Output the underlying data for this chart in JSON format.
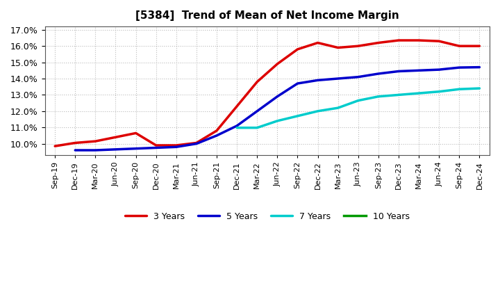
{
  "title": "[5384]  Trend of Mean of Net Income Margin",
  "ylim": [
    0.093,
    0.172
  ],
  "yticks": [
    0.1,
    0.11,
    0.12,
    0.13,
    0.14,
    0.15,
    0.16,
    0.17
  ],
  "background_color": "#ffffff",
  "grid_color": "#aaaaaa",
  "xtick_labels": [
    "Sep-19",
    "Dec-19",
    "Mar-20",
    "Jun-20",
    "Sep-20",
    "Dec-20",
    "Mar-21",
    "Jun-21",
    "Sep-21",
    "Dec-21",
    "Mar-22",
    "Jun-22",
    "Sep-22",
    "Dec-22",
    "Mar-23",
    "Jun-23",
    "Sep-23",
    "Dec-23",
    "Mar-24",
    "Jun-24",
    "Sep-24",
    "Dec-24"
  ],
  "series": [
    {
      "name": "3 Years",
      "color": "#dd0000",
      "x_idx": [
        0,
        1,
        2,
        3,
        4,
        5,
        6,
        7,
        8,
        9,
        10,
        11,
        12,
        13,
        14,
        15,
        16,
        17,
        18,
        19,
        20,
        21
      ],
      "y": [
        0.0985,
        0.1005,
        0.1015,
        0.104,
        0.1065,
        0.099,
        0.099,
        0.1005,
        0.108,
        0.123,
        0.138,
        0.149,
        0.158,
        0.162,
        0.159,
        0.16,
        0.162,
        0.1635,
        0.1635,
        0.163,
        0.16,
        0.16
      ]
    },
    {
      "name": "5 Years",
      "color": "#0000cc",
      "x_idx": [
        1,
        2,
        3,
        4,
        5,
        6,
        7,
        8,
        9,
        10,
        11,
        12,
        13,
        14,
        15,
        16,
        17,
        18,
        19,
        20,
        21
      ],
      "y": [
        0.096,
        0.096,
        0.0965,
        0.097,
        0.0975,
        0.098,
        0.1,
        0.105,
        0.111,
        0.12,
        0.129,
        0.137,
        0.139,
        0.14,
        0.141,
        0.143,
        0.1445,
        0.145,
        0.1455,
        0.1468,
        0.147
      ]
    },
    {
      "name": "7 Years",
      "color": "#00cccc",
      "x_idx": [
        9,
        10,
        11,
        12,
        13,
        14,
        15,
        16,
        17,
        18,
        19,
        20,
        21
      ],
      "y": [
        0.1098,
        0.1098,
        0.114,
        0.117,
        0.12,
        0.122,
        0.1265,
        0.129,
        0.13,
        0.131,
        0.132,
        0.1335,
        0.134
      ]
    },
    {
      "name": "10 Years",
      "color": "#009900",
      "x_idx": [],
      "y": []
    }
  ],
  "linewidth": 2.5
}
